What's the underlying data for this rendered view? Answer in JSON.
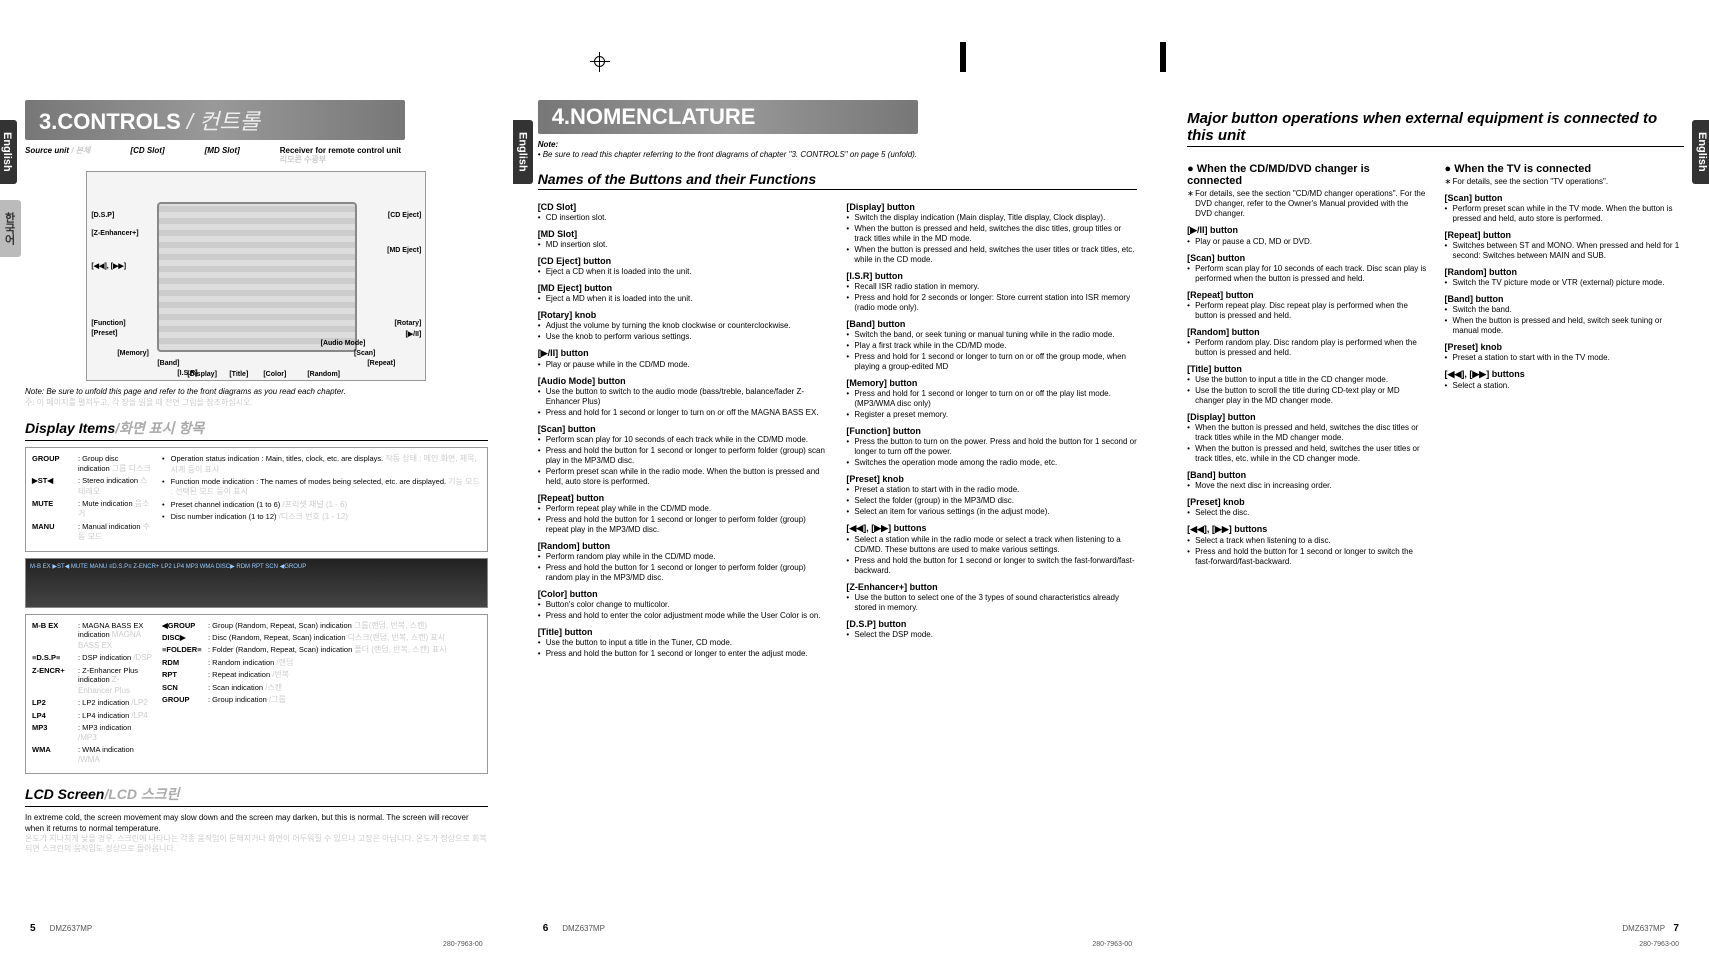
{
  "tabs": {
    "english": "English",
    "sub": "한국어"
  },
  "page5": {
    "heading_num": "3.",
    "heading": "CONTROLS",
    "heading_sep": " / ",
    "heading_kor": "컨트롤",
    "source_unit": "Source unit",
    "source_unit_kor": " / 본체",
    "cd_slot": "[CD Slot]",
    "md_slot": "[MD Slot]",
    "receiver": "Receiver for remote control unit",
    "receiver_kor": "리모콘 수광부",
    "labels": {
      "dsp": "[D.S.P]",
      "zenh": "[Z-Enhancer+]",
      "seek": "[◀◀], [▶▶]",
      "func": "[Function]",
      "preset": "[Preset]",
      "memory": "[Memory]",
      "band": "[Band]",
      "isr": "[I.S.R]",
      "display": "[Display]",
      "title": "[Title]",
      "color": "[Color]",
      "random": "[Random]",
      "repeat": "[Repeat]",
      "scan": "[Scan]",
      "audio": "[Audio Mode]",
      "rotary": "[Rotary]",
      "play": "[▶/II]",
      "cdeject": "[CD Eject]",
      "mdeject": "[MD Eject]"
    },
    "note": "Note: Be sure to unfold this page and refer to the front diagrams as you read each chapter.",
    "note_kor": "주: 이 페이지를 펼쳐두고, 각 장을 읽을 때 전면 그림을 참조하십시오.",
    "display_items": "Display Items",
    "display_items_kor": "/화면 표시 항목",
    "disp_left": [
      {
        "k": "GROUP",
        "en": ": Group disc indication",
        "kor": "그룹 디스크"
      },
      {
        "k": "▶ST◀",
        "en": ": Stereo indication",
        "kor": "스테레오"
      },
      {
        "k": "MUTE",
        "en": ": Mute indication",
        "kor": "음소거"
      },
      {
        "k": "MANU",
        "en": ": Manual indication",
        "kor": "수동 모드"
      }
    ],
    "disp_right": [
      {
        "en": "Operation status indication : Main, titles, clock, etc. are displays.",
        "kor": "작동 상태 : 메인 화면, 제목, 시계 등이 표시"
      },
      {
        "en": "Function mode indication : The names of modes being selected, etc. are displayed.",
        "kor": "기능 모드 : 선택된 모드 등이 표시"
      },
      {
        "en": "Preset channel indication (1 to 6)",
        "kor": "/프리셋 채널 (1 - 6)"
      },
      {
        "en": "Disc number indication (1 to 12)",
        "kor": "/디스크 번호 (1 - 12)"
      }
    ],
    "lcd_text": "M-B EX ▶ST◀ MUTE MANU  ≡D.S.P≡ Z-ENCR+ LP2 LP4 MP3 WMA DISC▶ RDM RPT SCN ◀GROUP",
    "disp2_left": [
      {
        "k": "M-B EX",
        "en": ": MAGNA BASS EX indication",
        "kor": "MAGNA BASS EX"
      },
      {
        "k": "≡D.S.P≡",
        "en": ": DSP indication",
        "kor": "/DSP"
      },
      {
        "k": "Z-ENCR+",
        "en": ": Z-Enhancer Plus indication",
        "kor": "Z-Enhancer Plus"
      },
      {
        "k": "LP2",
        "en": ": LP2 indication",
        "kor": "/LP2"
      },
      {
        "k": "LP4",
        "en": ": LP4 indication",
        "kor": "/LP4"
      },
      {
        "k": "MP3",
        "en": ": MP3 indication",
        "kor": "/MP3"
      },
      {
        "k": "WMA",
        "en": ": WMA indication",
        "kor": "/WMA"
      }
    ],
    "disp2_right": [
      {
        "k": "◀GROUP",
        "en": ": Group (Random, Repeat, Scan) indication",
        "kor": "그룹(랜덤, 반복, 스캔)"
      },
      {
        "k": "DISC▶",
        "en": ": Disc (Random, Repeat, Scan) indication",
        "kor": "디스크(랜덤, 반복, 스캔) 표시"
      },
      {
        "k": "≡FOLDER≡",
        "en": ": Folder (Random, Repeat, Scan) indication",
        "kor": "폴더 (랜덤, 반복, 스캔) 표시"
      },
      {
        "k": "RDM",
        "en": ": Random indication",
        "kor": "/랜덤"
      },
      {
        "k": "RPT",
        "en": ": Repeat indication",
        "kor": "/반복"
      },
      {
        "k": "SCN",
        "en": ": Scan indication",
        "kor": "/스캔"
      },
      {
        "k": "GROUP",
        "en": ": Group indication",
        "kor": "/그룹"
      }
    ],
    "lcd_screen": "LCD Screen",
    "lcd_screen_kor": "/LCD 스크린",
    "lcd_para": "In extreme cold, the screen movement may slow down and the screen may darken, but this is normal. The screen will recover when it returns to normal temperature.",
    "lcd_para_kor": "온도가 지나치게 낮을 경우, 스크린에 나타나는 각종 움직임이 둔해지거나 화면이 어두워질 수 있으나 고장은 아닙니다. 온도가 정상으로 회복되면 스크린의 움직임도 정상으로 돌아옵니다.",
    "page": "5",
    "model": "DMZ637MP"
  },
  "page6": {
    "heading_num": "4.",
    "heading": "NOMENCLATURE",
    "note_h": "Note:",
    "note": "• Be sure to read this chapter referring to the front diagrams of chapter \"3. CONTROLS\" on page 5 (unfold).",
    "names": "Names of the Buttons and their Functions",
    "left": [
      {
        "h": "[CD Slot]",
        "items": [
          "CD insertion slot."
        ]
      },
      {
        "h": "[MD Slot]",
        "items": [
          "MD insertion slot."
        ]
      },
      {
        "h": "[CD Eject] button",
        "items": [
          "Eject a CD when it is loaded into the unit."
        ]
      },
      {
        "h": "[MD Eject] button",
        "items": [
          "Eject a MD when it is loaded into the unit."
        ]
      },
      {
        "h": "[Rotary] knob",
        "items": [
          "Adjust the volume by turning the knob clockwise or counterclockwise.",
          "Use the knob to perform various settings."
        ]
      },
      {
        "h": "[▶/II] button",
        "items": [
          "Play or pause while in the CD/MD mode."
        ]
      },
      {
        "h": "[Audio Mode] button",
        "items": [
          "Use the button to switch to the audio mode (bass/treble, balance/fader Z-Enhancer Plus)",
          "Press and hold for 1 second or longer to turn on or off the MAGNA BASS EX."
        ]
      },
      {
        "h": "[Scan] button",
        "items": [
          "Perform scan play for 10 seconds of each track while in the CD/MD mode.",
          "Press and hold the button for 1 second or longer to perform folder (group) scan play in the MP3/MD disc.",
          "Perform preset scan while in the radio mode. When the button is pressed and held, auto store is performed."
        ]
      },
      {
        "h": "[Repeat] button",
        "items": [
          "Perform repeat play while in the CD/MD mode.",
          "Press and hold the button for 1 second or longer to perform folder (group) repeat play in the MP3/MD disc."
        ]
      },
      {
        "h": "[Random] button",
        "items": [
          "Perform random play while in the CD/MD mode.",
          "Press and hold the button for 1 second or longer to perform folder (group) random play in the MP3/MD disc."
        ]
      },
      {
        "h": "[Color] button",
        "items": [
          "Button's color change to multicolor.",
          "Press and hold to enter the color adjustment mode while the User Color is on."
        ]
      },
      {
        "h": "[Title] button",
        "items": [
          "Use the button to input a title in the Tuner, CD mode.",
          "Press and hold the button for 1 second or longer to enter the adjust mode."
        ]
      }
    ],
    "right": [
      {
        "h": "[Display] button",
        "items": [
          "Switch the display indication (Main display, Title display, Clock display).",
          "When the button is pressed and held, switches the disc titles, group titles or track titles while in the MD mode.",
          "When the button is pressed and held, switches the user titles or track titles, etc. while in the CD mode."
        ]
      },
      {
        "h": "[I.S.R] button",
        "items": [
          "Recall ISR radio station in memory.",
          "Press and hold for 2 seconds or longer: Store current station into ISR memory (radio mode only)."
        ]
      },
      {
        "h": "[Band] button",
        "items": [
          "Switch the band, or seek tuning or manual tuning while in the radio mode.",
          "Play a first track while in the CD/MD mode.",
          "Press and hold for 1 second or longer to turn on or off the group mode, when playing a group-edited MD"
        ]
      },
      {
        "h": "[Memory] button",
        "items": [
          "Press and hold for 1 second or longer to turn on or off the play list mode. (MP3/WMA disc only)",
          "Register a preset memory."
        ]
      },
      {
        "h": "[Function] button",
        "items": [
          "Press the button to turn on the power. Press and hold the button for 1 second or longer to turn off the power.",
          "Switches the operation mode among the radio mode, etc."
        ]
      },
      {
        "h": "[Preset] knob",
        "items": [
          "Preset a station to start with in the radio mode.",
          "Select the folder (group) in the MP3/MD disc.",
          "Select an item for various settings (in the adjust mode)."
        ]
      },
      {
        "h": "[◀◀], [▶▶] buttons",
        "items": [
          "Select a station while in the radio mode or select a track when listening to a CD/MD. These buttons are used to make various settings.",
          "Press and hold the button for 1 second or longer to switch the fast-forward/fast-backward."
        ]
      },
      {
        "h": "[Z-Enhancer+] button",
        "items": [
          "Use the button to select one of the 3 types of sound characteristics already stored in memory."
        ]
      },
      {
        "h": "[D.S.P] button",
        "items": [
          "Select the DSP mode."
        ]
      }
    ],
    "page": "6",
    "model": "DMZ637MP"
  },
  "page7": {
    "heading": "Major button operations when external equipment is connected to this unit",
    "s1_h": "When the CD/MD/DVD changer is connected",
    "s1_note": "For details, see the section \"CD/MD changer operations\". For the DVD changer, refer to the Owner's Manual provided with the DVD changer.",
    "s1": [
      {
        "h": "[▶/II] button",
        "items": [
          "Play or pause a CD, MD or DVD."
        ]
      },
      {
        "h": "[Scan] button",
        "items": [
          "Perform scan play for 10 seconds of each track. Disc scan play is performed when the button is pressed and held."
        ]
      },
      {
        "h": "[Repeat] button",
        "items": [
          "Perform repeat play. Disc repeat play is performed when the button is pressed and held."
        ]
      },
      {
        "h": "[Random] button",
        "items": [
          "Perform random play. Disc random play is performed when the button is pressed and held."
        ]
      },
      {
        "h": "[Title] button",
        "items": [
          "Use the button to input a title in the CD changer mode.",
          "Use the button to scroll the title during CD-text play or MD changer play in the MD changer mode."
        ]
      },
      {
        "h": "[Display] button",
        "items": [
          "When the button is pressed and held, switches the disc titles or track titles while in the MD changer mode.",
          "When the button is pressed and held, switches the user titles or track titles, etc. while in the CD changer mode."
        ]
      },
      {
        "h": "[Band] button",
        "items": [
          "Move the next disc in increasing order."
        ]
      },
      {
        "h": "[Preset] knob",
        "items": [
          "Select the disc."
        ]
      },
      {
        "h": "[◀◀], [▶▶] buttons",
        "items": [
          "Select a track when listening to a disc.",
          "Press and hold the button for 1 second or longer to switch the fast-forward/fast-backward."
        ]
      }
    ],
    "s2_h": "When the TV is connected",
    "s2_note": "For details, see the section \"TV operations\".",
    "s2": [
      {
        "h": "[Scan] button",
        "items": [
          "Perform preset scan while in the TV mode. When the button is pressed and held, auto store is performed."
        ]
      },
      {
        "h": "[Repeat] button",
        "items": [
          "Switches between ST and MONO. When pressed and held for 1 second: Switches between MAIN and SUB."
        ]
      },
      {
        "h": "[Random] button",
        "items": [
          "Switch the TV picture mode or VTR (external) picture mode."
        ]
      },
      {
        "h": "[Band] button",
        "items": [
          "Switch the band.",
          "When the button is pressed and held, switch seek tuning or manual mode."
        ]
      },
      {
        "h": "[Preset] knob",
        "items": [
          "Preset a station to start with in the TV mode."
        ]
      },
      {
        "h": "[◀◀], [▶▶] buttons",
        "items": [
          "Select a station."
        ]
      }
    ],
    "page": "7",
    "model": "DMZ637MP"
  },
  "foot": "280-7963-00"
}
